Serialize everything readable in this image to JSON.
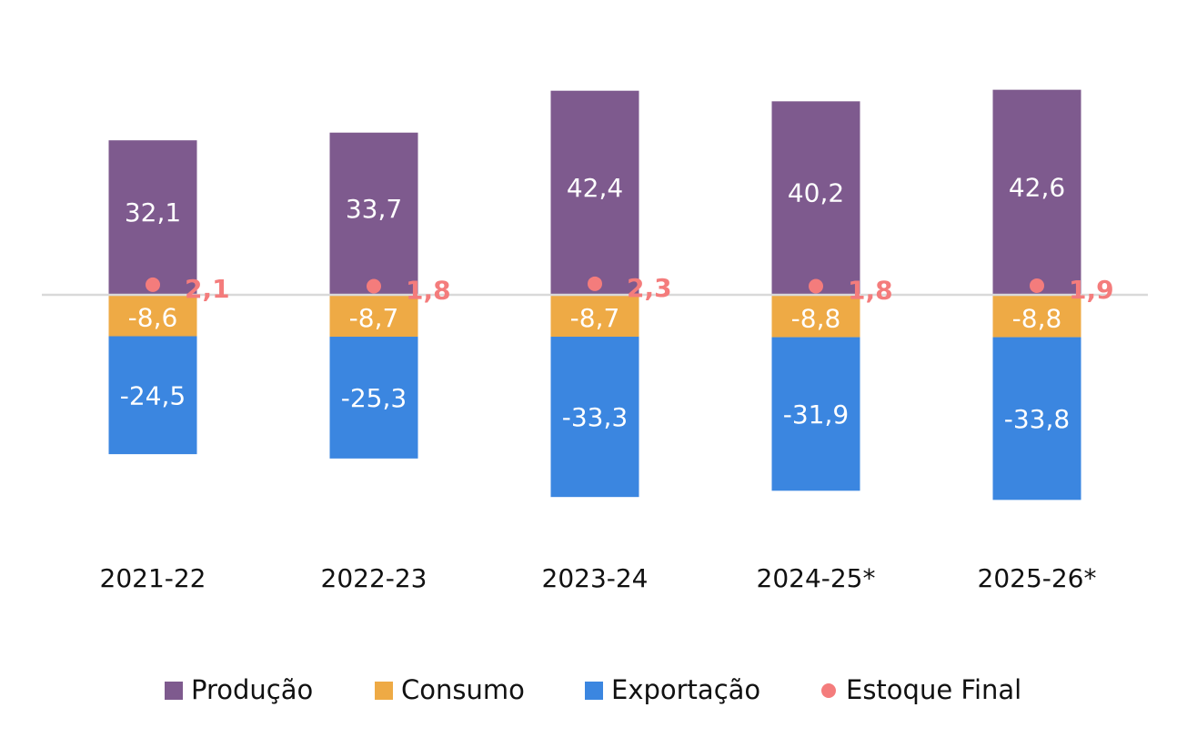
{
  "chart_data": {
    "type": "bar",
    "stacked": true,
    "categories": [
      "2021-22",
      "2022-23",
      "2023-24",
      "2024-25*",
      "2025-26*"
    ],
    "series": [
      {
        "name": "Produção",
        "color": "#7e5a8e",
        "values": [
          32.1,
          33.7,
          42.4,
          40.2,
          42.6
        ],
        "labels": [
          "32,1",
          "33,7",
          "42,4",
          "40,2",
          "42,6"
        ]
      },
      {
        "name": "Consumo",
        "color": "#eeaa45",
        "values": [
          -8.6,
          -8.7,
          -8.7,
          -8.8,
          -8.8
        ],
        "labels": [
          "-8,6",
          "-8,7",
          "-8,7",
          "-8,8",
          "-8,8"
        ]
      },
      {
        "name": "Exportação",
        "color": "#3b86e0",
        "values": [
          -24.5,
          -25.3,
          -33.3,
          -31.9,
          -33.8
        ],
        "labels": [
          "-24,5",
          "-25,3",
          "-33,3",
          "-31,9",
          "-33,8"
        ]
      }
    ],
    "markers": {
      "name": "Estoque Final",
      "color": "#f47c7c",
      "values": [
        2.1,
        1.8,
        2.3,
        1.8,
        1.9
      ],
      "labels": [
        "2,1",
        "1,8",
        "2,3",
        "1,8",
        "1,9"
      ]
    },
    "title": "",
    "xlabel": "",
    "ylabel": "",
    "ylim": [
      -45,
      50
    ],
    "grid": false,
    "legend_position": "bottom",
    "zero_line_color": "#d9d9d9"
  }
}
